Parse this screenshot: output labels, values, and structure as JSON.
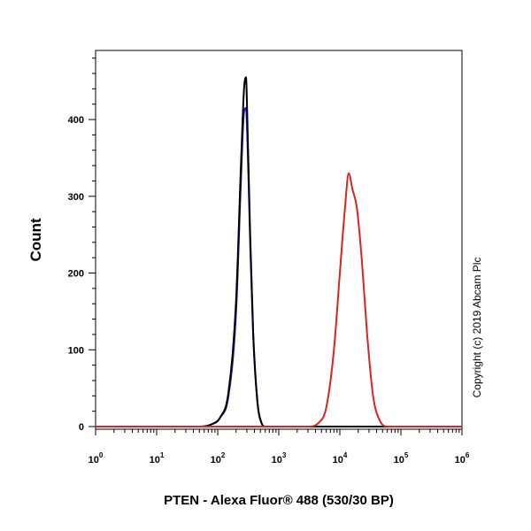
{
  "chart_data": {
    "type": "line",
    "title": "",
    "xlabel": "PTEN - Alexa Fluor® 488 (530/30 BP)",
    "ylabel": "Count",
    "x_scale": "log",
    "xlim": [
      1,
      1000000
    ],
    "ylim": [
      0,
      490
    ],
    "x_ticks": [
      {
        "base": "10",
        "exp": "0",
        "value": 1
      },
      {
        "base": "10",
        "exp": "1",
        "value": 10
      },
      {
        "base": "10",
        "exp": "2",
        "value": 100
      },
      {
        "base": "10",
        "exp": "3",
        "value": 1000
      },
      {
        "base": "10",
        "exp": "4",
        "value": 10000
      },
      {
        "base": "10",
        "exp": "5",
        "value": 100000
      },
      {
        "base": "10",
        "exp": "6",
        "value": 1000000
      }
    ],
    "y_ticks": [
      {
        "label": "0",
        "value": 0
      },
      {
        "label": "100",
        "value": 100
      },
      {
        "label": "200",
        "value": 200
      },
      {
        "label": "300",
        "value": 300
      },
      {
        "label": "400",
        "value": 400
      }
    ],
    "grid": false,
    "legend": "none",
    "series": [
      {
        "color": "#1a1acc",
        "x": [
          1,
          50,
          80,
          110,
          150,
          200,
          240,
          270,
          290,
          310,
          340,
          380,
          450,
          520,
          600,
          1000000
        ],
        "y": [
          0,
          0,
          3,
          12,
          40,
          150,
          320,
          410,
          415,
          360,
          240,
          120,
          30,
          5,
          0,
          0
        ]
      },
      {
        "color": "#000000",
        "x": [
          1,
          50,
          80,
          110,
          150,
          200,
          240,
          270,
          290,
          310,
          340,
          380,
          450,
          520,
          600,
          1000000
        ],
        "y": [
          0,
          0,
          3,
          12,
          45,
          165,
          340,
          440,
          455,
          380,
          250,
          125,
          30,
          5,
          0,
          0
        ]
      },
      {
        "color": "#dd2222",
        "x": [
          1,
          3000,
          4500,
          6000,
          8000,
          10000,
          12000,
          14000,
          16000,
          19000,
          23000,
          28000,
          35000,
          45000,
          60000,
          1000000
        ],
        "y": [
          0,
          0,
          5,
          25,
          100,
          200,
          280,
          330,
          310,
          285,
          215,
          120,
          40,
          8,
          0,
          0
        ]
      }
    ]
  },
  "watermark": {
    "text": "Copyright (c) 2019 Abcam Plc"
  }
}
